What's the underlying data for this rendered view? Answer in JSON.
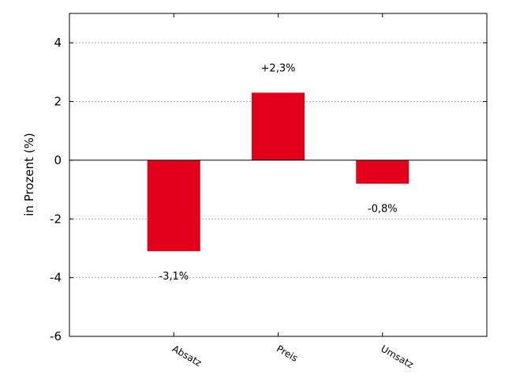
{
  "chart_data": {
    "type": "bar",
    "title": "",
    "xlabel": "",
    "ylabel": "in Prozent (%)",
    "categories": [
      "Absatz",
      "Preis",
      "Umsatz"
    ],
    "values": [
      -3.1,
      2.3,
      -0.8
    ],
    "data_labels": [
      "-3,1%",
      "+2,3%",
      "-0,8%"
    ],
    "ylim": [
      -6,
      5
    ],
    "yticks": [
      -6,
      -4,
      -2,
      0,
      2,
      4
    ],
    "ytick_labels": [
      "-6",
      "-4",
      "-2",
      "0",
      "2",
      "4"
    ],
    "grid": "horizontal dotted",
    "legend": "none",
    "colors": {
      "bar": "#e2001a",
      "grid": "#b0b0b0",
      "axis": "#000000",
      "zero_line": "#000000"
    }
  }
}
